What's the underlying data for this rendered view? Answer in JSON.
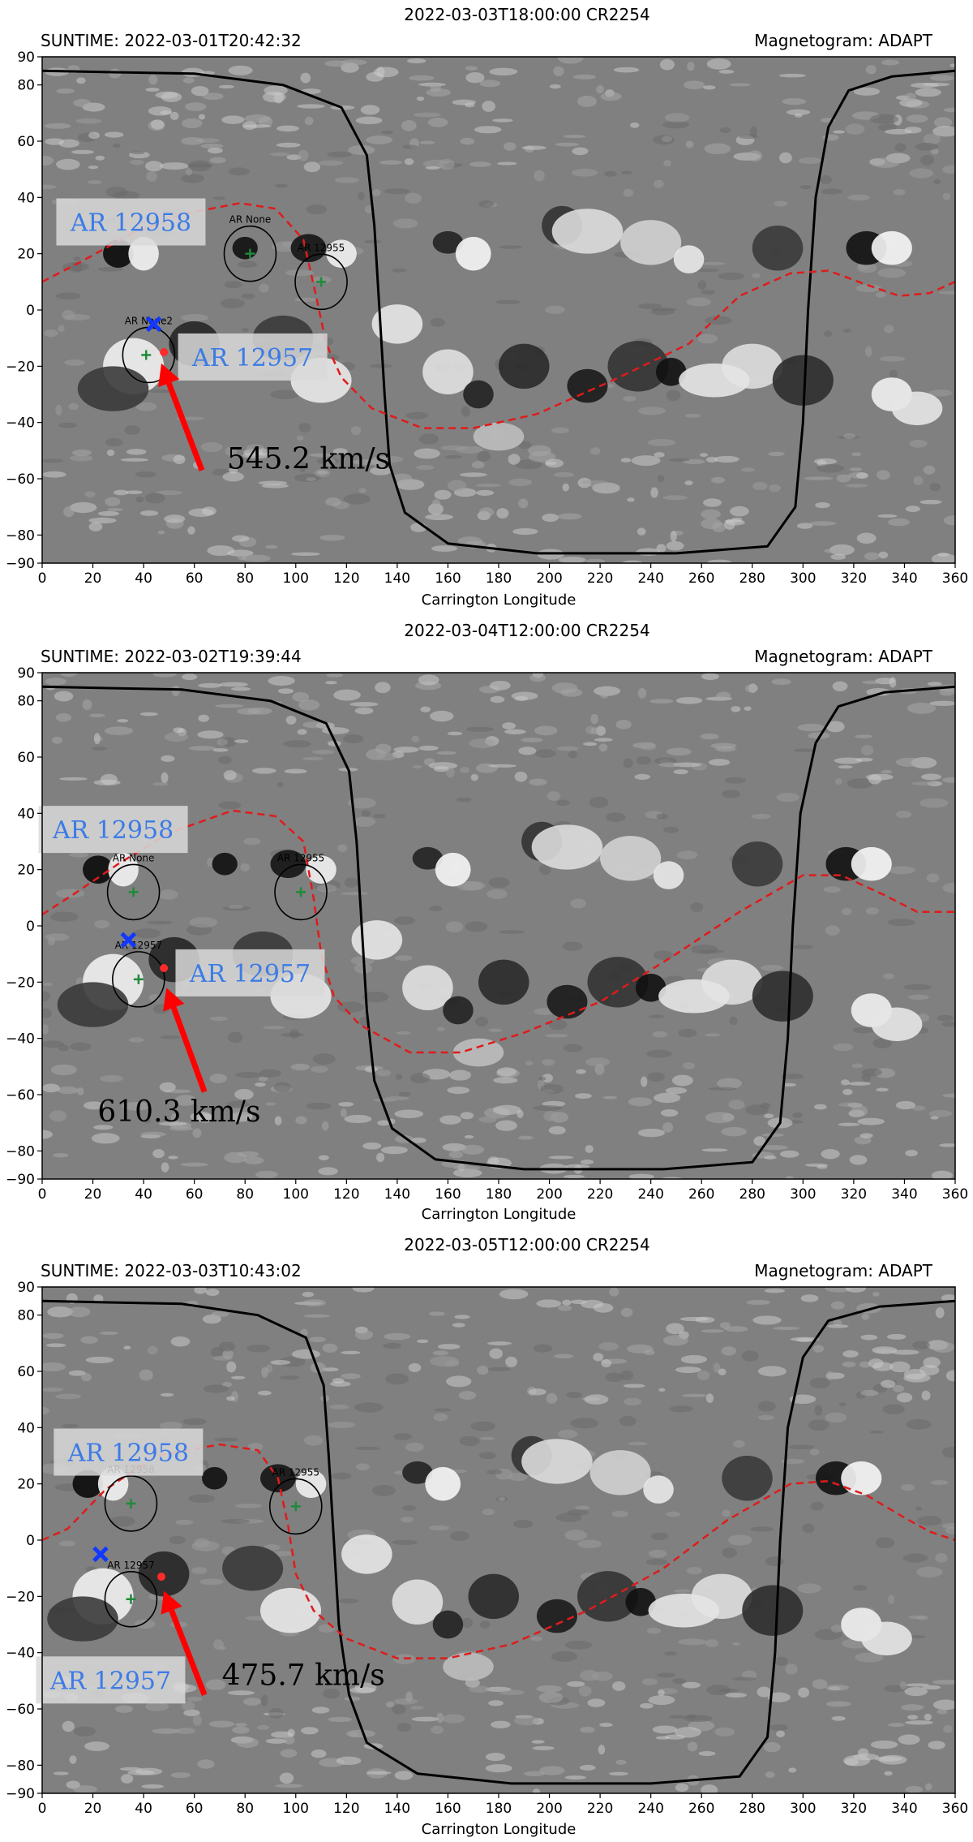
{
  "chart_data": [
    {
      "type": "scatter",
      "title": "2022-03-03T18:00:00 CR2254",
      "left_header": "SUNTIME: 2022-03-01T20:42:32",
      "right_header": "Magnetogram: ADAPT",
      "xlabel": "Carrington Longitude",
      "ylabel": "",
      "xlim": [
        0,
        360
      ],
      "ylim": [
        -90,
        90
      ],
      "xticks": [
        "0",
        "20",
        "40",
        "60",
        "80",
        "100",
        "120",
        "140",
        "160",
        "180",
        "200",
        "220",
        "240",
        "260",
        "280",
        "300",
        "320",
        "340",
        "360"
      ],
      "yticks": [
        "90",
        "80",
        "60",
        "40",
        "20",
        "0",
        "−20",
        "−40",
        "−60",
        "−80",
        "−90"
      ],
      "grid": false,
      "black_contour": [
        [
          0,
          85
        ],
        [
          60,
          84
        ],
        [
          95,
          80
        ],
        [
          118,
          72
        ],
        [
          128,
          55
        ],
        [
          131,
          30
        ],
        [
          133,
          0
        ],
        [
          135,
          -30
        ],
        [
          137,
          -55
        ],
        [
          143,
          -72
        ],
        [
          160,
          -83
        ],
        [
          195,
          -86.5
        ],
        [
          250,
          -86.5
        ],
        [
          286,
          -84
        ],
        [
          297,
          -70
        ],
        [
          300,
          -40
        ],
        [
          302,
          0
        ],
        [
          305,
          40
        ],
        [
          310,
          65
        ],
        [
          318,
          78
        ],
        [
          335,
          83
        ],
        [
          360,
          85
        ]
      ],
      "neutral_line": [
        [
          0,
          10
        ],
        [
          15,
          17
        ],
        [
          35,
          27
        ],
        [
          55,
          34
        ],
        [
          78,
          38
        ],
        [
          92,
          36
        ],
        [
          103,
          25
        ],
        [
          108,
          5
        ],
        [
          112,
          -12
        ],
        [
          118,
          -24
        ],
        [
          130,
          -35
        ],
        [
          150,
          -42
        ],
        [
          170,
          -42
        ],
        [
          195,
          -37
        ],
        [
          225,
          -25
        ],
        [
          255,
          -12
        ],
        [
          275,
          5
        ],
        [
          295,
          13
        ],
        [
          310,
          14
        ],
        [
          325,
          9
        ],
        [
          338,
          5
        ],
        [
          350,
          6
        ],
        [
          360,
          10
        ]
      ],
      "circles": [
        {
          "label": "AR None",
          "lon": 82,
          "lat": 20
        },
        {
          "label": "AR 12955",
          "lon": 110,
          "lat": 10
        },
        {
          "label": "AR None2",
          "lon": 42,
          "lat": -16
        }
      ],
      "sources": [
        {
          "type": "blue-x",
          "lon": 44,
          "lat": -5
        },
        {
          "type": "red-dot",
          "lon": 48,
          "lat": -15
        },
        {
          "type": "green-plus",
          "lon": 82,
          "lat": 20
        },
        {
          "type": "green-plus",
          "lon": 110,
          "lat": 10
        },
        {
          "type": "green-plus",
          "lon": 41,
          "lat": -16
        }
      ],
      "annotations": [
        {
          "text": "AR 12958",
          "lon": 35,
          "lat": 31
        },
        {
          "text": "AR 12957",
          "lon": 83,
          "lat": -17
        },
        {
          "text": "545.2 km/s",
          "lon": 105,
          "lat": -53
        }
      ],
      "arrow": {
        "from": [
          63,
          -57
        ],
        "to": [
          47,
          -19
        ]
      }
    },
    {
      "type": "scatter",
      "title": "2022-03-04T12:00:00 CR2254",
      "left_header": "SUNTIME: 2022-03-02T19:39:44",
      "right_header": "Magnetogram: ADAPT",
      "xlabel": "Carrington Longitude",
      "ylabel": "",
      "xlim": [
        0,
        360
      ],
      "ylim": [
        -90,
        90
      ],
      "xticks": [
        "0",
        "20",
        "40",
        "60",
        "80",
        "100",
        "120",
        "140",
        "160",
        "180",
        "200",
        "220",
        "240",
        "260",
        "280",
        "300",
        "320",
        "340",
        "360"
      ],
      "yticks": [
        "90",
        "80",
        "60",
        "40",
        "20",
        "0",
        "−20",
        "−40",
        "−60",
        "−80",
        "−90"
      ],
      "grid": false,
      "black_contour": [
        [
          0,
          85
        ],
        [
          55,
          84
        ],
        [
          90,
          80
        ],
        [
          112,
          72
        ],
        [
          121,
          55
        ],
        [
          124,
          30
        ],
        [
          126,
          0
        ],
        [
          128,
          -30
        ],
        [
          131,
          -55
        ],
        [
          138,
          -72
        ],
        [
          155,
          -83
        ],
        [
          190,
          -86.5
        ],
        [
          245,
          -86.5
        ],
        [
          280,
          -84
        ],
        [
          291,
          -70
        ],
        [
          294,
          -40
        ],
        [
          296,
          0
        ],
        [
          299,
          40
        ],
        [
          305,
          65
        ],
        [
          314,
          78
        ],
        [
          332,
          83
        ],
        [
          360,
          85
        ]
      ],
      "neutral_line": [
        [
          0,
          4
        ],
        [
          12,
          11
        ],
        [
          30,
          22
        ],
        [
          50,
          33
        ],
        [
          75,
          41
        ],
        [
          92,
          39
        ],
        [
          103,
          30
        ],
        [
          107,
          10
        ],
        [
          110,
          -10
        ],
        [
          115,
          -25
        ],
        [
          125,
          -35
        ],
        [
          145,
          -45
        ],
        [
          165,
          -45
        ],
        [
          190,
          -38
        ],
        [
          220,
          -27
        ],
        [
          250,
          -10
        ],
        [
          275,
          5
        ],
        [
          300,
          18
        ],
        [
          315,
          18
        ],
        [
          332,
          11
        ],
        [
          345,
          5
        ],
        [
          360,
          5
        ]
      ],
      "circles": [
        {
          "label": "AR None",
          "lon": 36,
          "lat": 12
        },
        {
          "label": "AR 12955",
          "lon": 102,
          "lat": 12
        },
        {
          "label": "AR 12957",
          "lon": 38,
          "lat": -19
        }
      ],
      "sources": [
        {
          "type": "blue-x",
          "lon": 34,
          "lat": -5
        },
        {
          "type": "red-dot",
          "lon": 48,
          "lat": -15
        },
        {
          "type": "green-plus",
          "lon": 36,
          "lat": 12
        },
        {
          "type": "green-plus",
          "lon": 102,
          "lat": 12
        },
        {
          "type": "green-plus",
          "lon": 38,
          "lat": -19
        }
      ],
      "annotations": [
        {
          "text": "AR 12958",
          "lon": 28,
          "lat": 34
        },
        {
          "text": "AR 12957",
          "lon": 82,
          "lat": -17
        },
        {
          "text": "610.3 km/s",
          "lon": 54,
          "lat": -66
        }
      ],
      "arrow": {
        "from": [
          64,
          -59
        ],
        "to": [
          49,
          -22
        ]
      }
    },
    {
      "type": "scatter",
      "title": "2022-03-05T12:00:00 CR2254",
      "left_header": "SUNTIME: 2022-03-03T10:43:02",
      "right_header": "Magnetogram: ADAPT",
      "xlabel": "Carrington Longitude",
      "ylabel": "",
      "xlim": [
        0,
        360
      ],
      "ylim": [
        -90,
        90
      ],
      "xticks": [
        "0",
        "20",
        "40",
        "60",
        "80",
        "100",
        "120",
        "140",
        "160",
        "180",
        "200",
        "220",
        "240",
        "260",
        "280",
        "300",
        "320",
        "340",
        "360"
      ],
      "yticks": [
        "90",
        "80",
        "60",
        "40",
        "20",
        "0",
        "−20",
        "−40",
        "−60",
        "−80",
        "−90"
      ],
      "grid": false,
      "black_contour": [
        [
          0,
          85
        ],
        [
          55,
          84
        ],
        [
          85,
          80
        ],
        [
          104,
          72
        ],
        [
          111,
          55
        ],
        [
          113,
          30
        ],
        [
          115,
          0
        ],
        [
          117,
          -30
        ],
        [
          121,
          -55
        ],
        [
          128,
          -72
        ],
        [
          148,
          -83
        ],
        [
          185,
          -86.5
        ],
        [
          240,
          -86.5
        ],
        [
          275,
          -84
        ],
        [
          286,
          -70
        ],
        [
          289,
          -40
        ],
        [
          291,
          0
        ],
        [
          294,
          40
        ],
        [
          300,
          65
        ],
        [
          310,
          78
        ],
        [
          330,
          83
        ],
        [
          360,
          85
        ]
      ],
      "neutral_line": [
        [
          0,
          0
        ],
        [
          10,
          4
        ],
        [
          25,
          18
        ],
        [
          45,
          30
        ],
        [
          70,
          34
        ],
        [
          85,
          32
        ],
        [
          93,
          22
        ],
        [
          97,
          5
        ],
        [
          100,
          -12
        ],
        [
          107,
          -25
        ],
        [
          120,
          -35
        ],
        [
          140,
          -42
        ],
        [
          160,
          -42
        ],
        [
          185,
          -37
        ],
        [
          215,
          -25
        ],
        [
          245,
          -10
        ],
        [
          270,
          7
        ],
        [
          295,
          20
        ],
        [
          310,
          21
        ],
        [
          325,
          16
        ],
        [
          340,
          8
        ],
        [
          350,
          3
        ],
        [
          360,
          0
        ]
      ],
      "circles": [
        {
          "label": "AR 12958",
          "lon": 35,
          "lat": 13
        },
        {
          "label": "AR 12955",
          "lon": 100,
          "lat": 12
        },
        {
          "label": "AR 12957",
          "lon": 35,
          "lat": -21
        }
      ],
      "sources": [
        {
          "type": "blue-x",
          "lon": 23,
          "lat": -5
        },
        {
          "type": "red-dot",
          "lon": 47,
          "lat": -13
        },
        {
          "type": "green-plus",
          "lon": 35,
          "lat": 13
        },
        {
          "type": "green-plus",
          "lon": 100,
          "lat": 12
        },
        {
          "type": "green-plus",
          "lon": 35,
          "lat": -21
        }
      ],
      "annotations": [
        {
          "text": "AR 12958",
          "lon": 34,
          "lat": 31
        },
        {
          "text": "AR 12957",
          "lon": 27,
          "lat": -50
        },
        {
          "text": "475.7 km/s",
          "lon": 103,
          "lat": -48
        }
      ],
      "arrow": {
        "from": [
          64,
          -55
        ],
        "to": [
          48,
          -18
        ]
      }
    }
  ],
  "colors": {
    "neutral_line": "#e01b1b",
    "contour": "#000000",
    "arrow": "#ff0000",
    "annotation_text": "#3c7be6",
    "annotation_box": "#d9d9d9",
    "blue_marker": "#1238ff",
    "green_marker": "#1f8a3a",
    "background_gray": "#808080"
  }
}
